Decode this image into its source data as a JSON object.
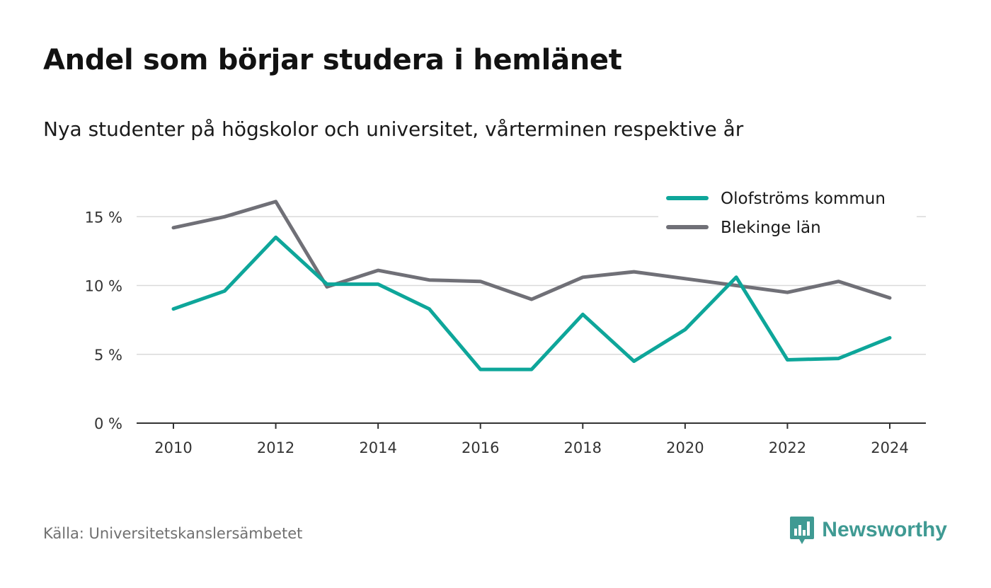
{
  "title": "Andel som börjar studera i hemlänet",
  "subtitle": "Nya studenter på högskolor och universitet, vårterminen respektive år",
  "source": "Källa: Universitetskanslersämbetet",
  "brand": {
    "name": "Newsworthy",
    "icon": "newsworthy-logo-icon"
  },
  "colors": {
    "olofstrom": "#0ea69a",
    "blekinge": "#707077",
    "grid": "#d9d9d9",
    "axis": "#333333"
  },
  "chart_data": {
    "type": "line",
    "title": "Andel som börjar studera i hemlänet",
    "xlabel": "",
    "ylabel": "",
    "x": [
      2010,
      2011,
      2012,
      2013,
      2014,
      2015,
      2016,
      2017,
      2018,
      2019,
      2020,
      2021,
      2022,
      2023,
      2024
    ],
    "xticks": [
      "2010",
      "2012",
      "2014",
      "2016",
      "2018",
      "2020",
      "2022",
      "2024"
    ],
    "yticks": [
      "0 %",
      "5 %",
      "10 %",
      "15 %"
    ],
    "ylim": [
      0,
      16.5
    ],
    "xlim": [
      2009.3,
      2024.7
    ],
    "grid": true,
    "legend_position": "top-right",
    "series": [
      {
        "name": "Olofströms kommun",
        "color": "#0ea69a",
        "values": [
          8.3,
          9.6,
          13.5,
          10.1,
          10.1,
          8.3,
          3.9,
          3.9,
          7.9,
          4.5,
          6.8,
          10.6,
          4.6,
          4.7,
          6.2
        ]
      },
      {
        "name": "Blekinge län",
        "color": "#707077",
        "values": [
          14.2,
          15.0,
          16.1,
          9.9,
          11.1,
          10.4,
          10.3,
          9.0,
          10.6,
          11.0,
          10.5,
          10.0,
          9.5,
          10.3,
          9.1
        ]
      }
    ]
  }
}
